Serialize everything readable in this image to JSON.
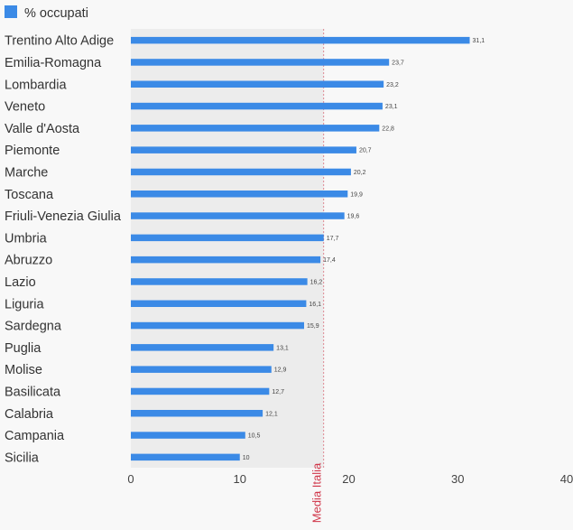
{
  "chart_data": {
    "type": "bar",
    "orientation": "horizontal",
    "categories": [
      "Trentino Alto Adige",
      "Emilia-Romagna",
      "Lombardia",
      "Veneto",
      "Valle d'Aosta",
      "Piemonte",
      "Marche",
      "Toscana",
      "Friuli-Venezia Giulia",
      "Umbria",
      "Abruzzo",
      "Lazio",
      "Liguria",
      "Sardegna",
      "Puglia",
      "Molise",
      "Basilicata",
      "Calabria",
      "Campania",
      "Sicilia"
    ],
    "series": [
      {
        "name": "% occupati",
        "color": "#3b8ae6",
        "values": [
          31.1,
          23.7,
          23.2,
          23.1,
          22.8,
          20.7,
          20.2,
          19.9,
          19.6,
          17.7,
          17.4,
          16.2,
          16.1,
          15.9,
          13.1,
          12.9,
          12.7,
          12.1,
          10.5,
          10
        ]
      }
    ],
    "data_labels": [
      "31,1",
      "23,7",
      "23,2",
      "23,1",
      "22,8",
      "20,7",
      "20,2",
      "19,9",
      "19,6",
      "17,7",
      "17,4",
      "16,2",
      "16,1",
      "15,9",
      "13,1",
      "12,9",
      "12,7",
      "12,1",
      "10,5",
      "10"
    ],
    "xlim": [
      0,
      40
    ],
    "xticks": [
      0,
      10,
      20,
      30,
      40
    ],
    "reference_line": {
      "value": 17.7,
      "label": "Media Italia",
      "color": "#d0374a",
      "shade_color": "#ececec"
    },
    "legend": {
      "position": "top-left",
      "label": "% occupati"
    },
    "grid": false
  }
}
